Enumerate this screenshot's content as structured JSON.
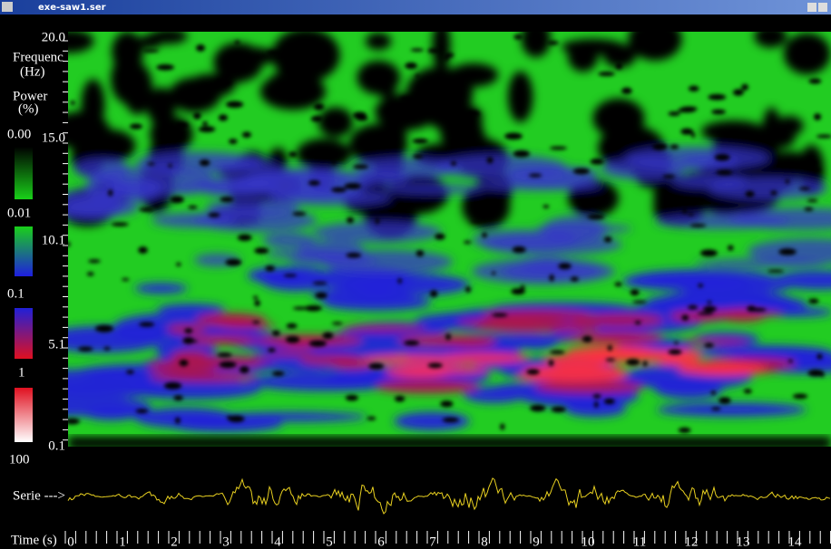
{
  "window": {
    "title": "exe-saw1.ser"
  },
  "frequency_axis": {
    "label": "Frequenc",
    "unit": "(Hz)",
    "ticks": [
      "20.0",
      "15.0",
      "10.1",
      "5.1",
      "0.1"
    ]
  },
  "power_legend": {
    "label": "Power",
    "unit": "(%)",
    "levels": [
      "0.00",
      "0.01",
      "0.1",
      "1",
      "100"
    ]
  },
  "serie": {
    "label": "Serie --->"
  },
  "time_axis": {
    "label": "Time (s)",
    "ticks": [
      "0",
      "1",
      "2",
      "3",
      "4",
      "5",
      "6",
      "7",
      "8",
      "9",
      "10",
      "11",
      "12",
      "13",
      "14"
    ]
  }
}
